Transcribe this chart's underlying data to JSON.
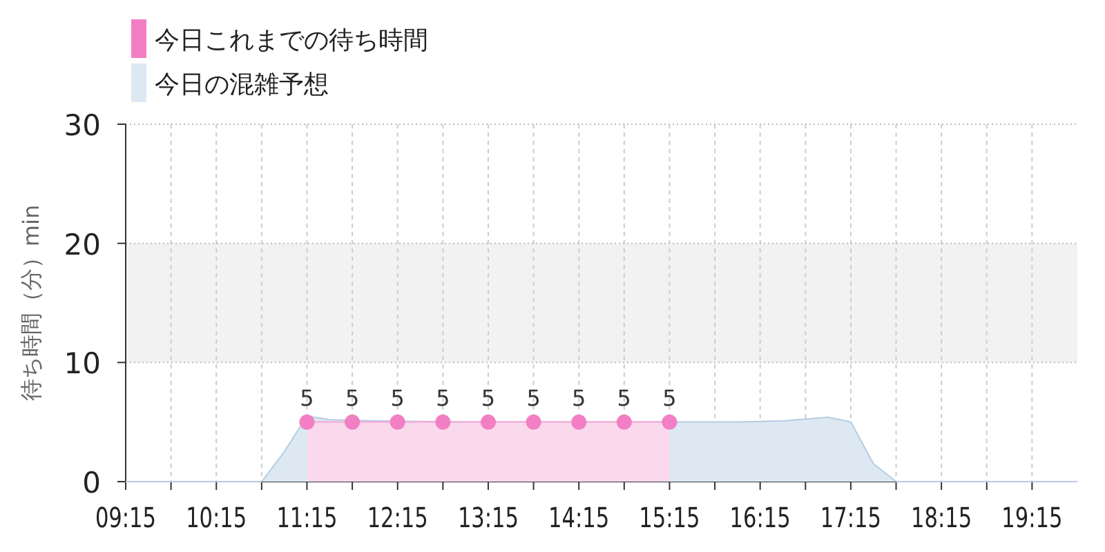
{
  "chart_data": {
    "type": "area",
    "ylabel": "待ち時間（分）min",
    "xlim": [
      9.25,
      19.75
    ],
    "ylim": [
      0,
      30
    ],
    "yticks": [
      0,
      10,
      20,
      30
    ],
    "xticks": [
      {
        "value": 9.25,
        "label": "09:15"
      },
      {
        "value": 9.75,
        "label": null
      },
      {
        "value": 10.25,
        "label": "10:15"
      },
      {
        "value": 10.75,
        "label": null
      },
      {
        "value": 11.25,
        "label": "11:15"
      },
      {
        "value": 11.75,
        "label": null
      },
      {
        "value": 12.25,
        "label": "12:15"
      },
      {
        "value": 12.75,
        "label": null
      },
      {
        "value": 13.25,
        "label": "13:15"
      },
      {
        "value": 13.75,
        "label": null
      },
      {
        "value": 14.25,
        "label": "14:15"
      },
      {
        "value": 14.75,
        "label": null
      },
      {
        "value": 15.25,
        "label": "15:15"
      },
      {
        "value": 15.75,
        "label": null
      },
      {
        "value": 16.25,
        "label": "16:15"
      },
      {
        "value": 16.75,
        "label": null
      },
      {
        "value": 17.25,
        "label": "17:15"
      },
      {
        "value": 17.75,
        "label": null
      },
      {
        "value": 18.25,
        "label": "18:15"
      },
      {
        "value": 18.75,
        "label": null
      },
      {
        "value": 19.25,
        "label": "19:15"
      }
    ],
    "grid": true,
    "legend": "top left",
    "bands": [
      {
        "axis": "y",
        "from": 10,
        "to": 20,
        "color": "#f2f2f2"
      }
    ],
    "series": [
      {
        "name": "今日の混雑予想",
        "color": "#dde8f2",
        "x": [
          9.25,
          10.5,
          10.75,
          11.0,
          11.25,
          11.5,
          12.0,
          13.0,
          14.0,
          15.0,
          16.0,
          16.5,
          17.0,
          17.25,
          17.5,
          17.75,
          18.25,
          19.75
        ],
        "values": [
          0,
          0,
          0,
          2.5,
          5.5,
          5.2,
          5.1,
          5,
          5,
          5,
          5,
          5.1,
          5.4,
          5,
          1.5,
          0,
          0,
          0
        ]
      },
      {
        "name": "今日これまでの待ち時間",
        "color": "#f27fc3",
        "marker": "circle",
        "data_labels": true,
        "x": [
          11.25,
          11.75,
          12.25,
          12.75,
          13.25,
          13.75,
          14.25,
          14.75,
          15.25
        ],
        "values": [
          5,
          5,
          5,
          5,
          5,
          5,
          5,
          5,
          5
        ]
      }
    ]
  }
}
